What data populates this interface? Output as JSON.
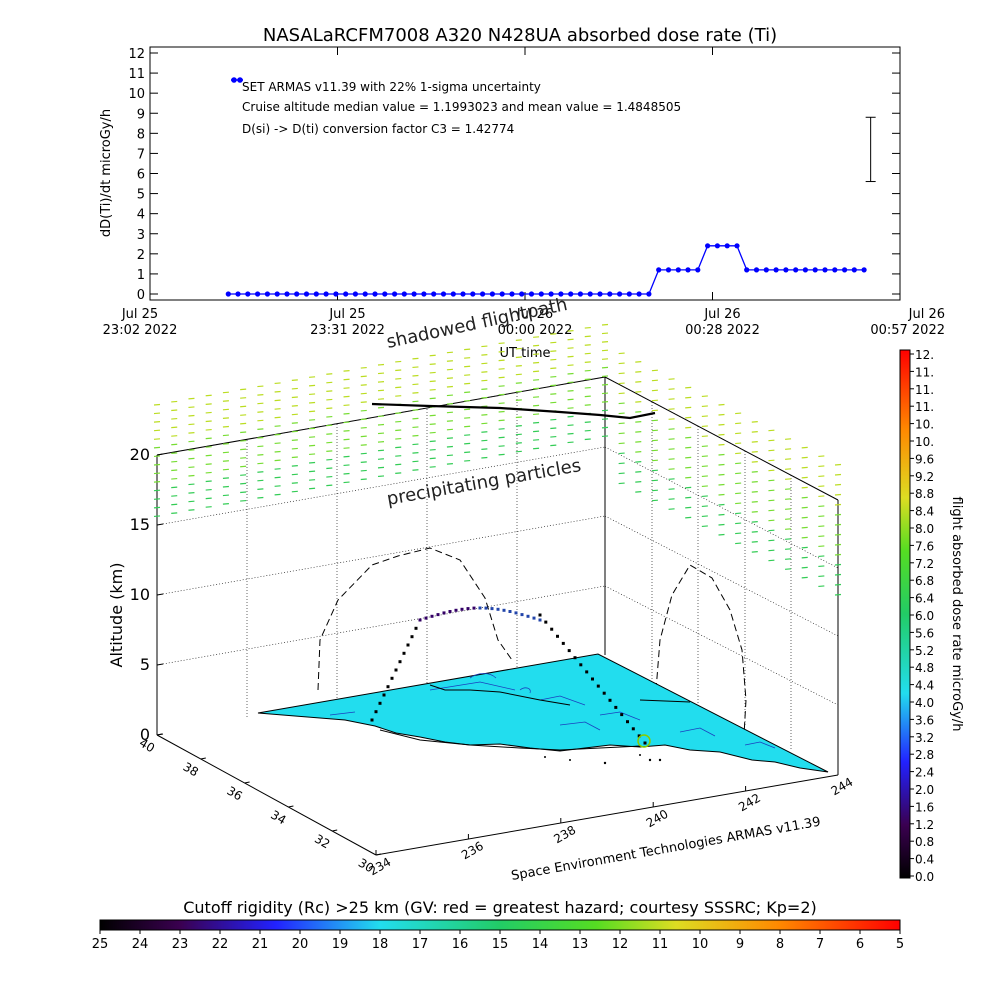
{
  "chart_data": [
    {
      "type": "line",
      "title": "NASALaRCFM7008  A320 N428UA absorbed dose rate (Ti)",
      "ylabel": "dD(Ti)/dt microGy/h",
      "xlabel": "UT time",
      "ylim": [
        0,
        12
      ],
      "yticks": [
        "0",
        "1",
        "2",
        "3",
        "4",
        "5",
        "6",
        "7",
        "8",
        "9",
        "10",
        "11",
        "12"
      ],
      "xtick_labels": [
        {
          "line1": "Jul 25",
          "line2": "23:02 2022"
        },
        {
          "line1": "Jul 25",
          "line2": "23:31 2022"
        },
        {
          "line1": "Jul 26",
          "line2": "00:00 2022"
        },
        {
          "line1": "Jul 26",
          "line2": "00:28 2022"
        },
        {
          "line1": "Jul 26",
          "line2": "00:57 2022"
        }
      ],
      "xlim_minutes": [
        0,
        115
      ],
      "legend": {
        "marker_label": "SET ARMAS v11.39 with 22% 1-sigma uncertainty",
        "line2": "Cruise altitude median value = 1.1993023 and mean value = 1.4848505",
        "line3": "D(si) -> D(ti) conversion factor C3 = 1.42774"
      },
      "series": [
        {
          "color": "#0000ff",
          "x_minutes": [
            12,
            13.5,
            15,
            16.5,
            18,
            19.5,
            21,
            22.5,
            24,
            25.5,
            27,
            28.5,
            30,
            31.5,
            33,
            34.5,
            36,
            37.5,
            39,
            40.5,
            42,
            43.5,
            45,
            46.5,
            48,
            49.5,
            51,
            52.5,
            54,
            55.5,
            57,
            58.5,
            60,
            61.5,
            63,
            64.5,
            66,
            67.5,
            69,
            70.5,
            72,
            73.5,
            75,
            76.5,
            78,
            79.5,
            81,
            82.5,
            84,
            85.5,
            87,
            88.5,
            90,
            91.5,
            93,
            94.5,
            96,
            97.5,
            99,
            100.5,
            102,
            103.5,
            105,
            106.5,
            108,
            109.5
          ],
          "y": [
            0,
            0,
            0,
            0,
            0,
            0,
            0,
            0,
            0,
            0,
            0,
            0,
            0,
            0,
            0,
            0,
            0,
            0,
            0,
            0,
            0,
            0,
            0,
            0,
            0,
            0,
            0,
            0,
            0,
            0,
            0,
            0,
            0,
            0,
            0,
            0,
            0,
            0,
            0,
            0,
            0,
            0,
            0,
            0,
            1.2,
            1.2,
            1.2,
            1.2,
            1.2,
            2.4,
            2.4,
            2.4,
            2.4,
            1.2,
            1.2,
            1.2,
            1.2,
            1.2,
            1.2,
            1.2,
            1.2,
            1.2,
            1.2,
            1.2,
            1.2,
            1.2
          ]
        }
      ],
      "error_bar": {
        "x_minutes": 110.5,
        "y": 7.2,
        "low": 5.6,
        "high": 8.8
      }
    },
    {
      "type": "scatter",
      "subtype": "3d-trajectory",
      "zlabel": "Altitude (km)",
      "zticks": [
        "0",
        "5",
        "10",
        "15",
        "20"
      ],
      "lat_ticks": [
        "30",
        "32",
        "34",
        "36",
        "38",
        "40"
      ],
      "lon_ticks": [
        "234",
        "236",
        "238",
        "240",
        "242",
        "244"
      ],
      "annotations": [
        "shadowed flightpath",
        "precipitating particles"
      ],
      "credit": "Space Environment Technologies ARMAS v11.39",
      "colorbar_right": {
        "label": "flight absorbed dose rate microGy/h",
        "ticks": [
          "0.0",
          "0.4",
          "0.8",
          "1.2",
          "1.6",
          "2.0",
          "2.4",
          "2.8",
          "3.2",
          "3.6",
          "4.0",
          "4.4",
          "4.8",
          "5.2",
          "5.6",
          "6.0",
          "6.4",
          "6.8",
          "7.2",
          "7.6",
          "8.0",
          "8.4",
          "8.8",
          "9.2",
          "9.6",
          "10.",
          "10.",
          "11.",
          "11.",
          "11.",
          "12."
        ]
      },
      "colorbar_bottom": {
        "label": "Cutoff rigidity (Rc) >25 km (GV: red = greatest hazard; courtesy SSSRC; Kp=2)",
        "ticks": [
          "25",
          "24",
          "23",
          "22",
          "21",
          "20",
          "19",
          "18",
          "17",
          "16",
          "15",
          "14",
          "13",
          "12",
          "11",
          "10",
          "9",
          "8",
          "7",
          "6",
          "5"
        ]
      }
    }
  ],
  "colors": {
    "series": "#0000ff",
    "surface": "#22ddee",
    "precip": "#88dd33"
  }
}
